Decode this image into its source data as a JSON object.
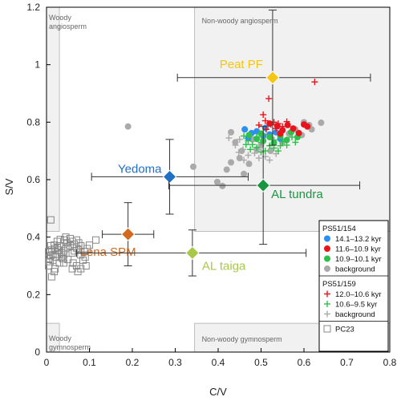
{
  "chart_data": {
    "type": "scatter",
    "xlabel": "C/V",
    "ylabel": "S/V",
    "xlim": [
      0,
      0.8
    ],
    "ylim": [
      0,
      1.2
    ],
    "xticks": [
      "0",
      "0.1",
      "0.2",
      "0.3",
      "0.4",
      "0.5",
      "0.6",
      "0.7",
      "0.8"
    ],
    "yticks": [
      "0",
      "0.2",
      "0.4",
      "0.6",
      "0.8",
      "1",
      "1.2"
    ],
    "regions": [
      {
        "name": "woody-angiosperm",
        "label": "Woody angiosperm",
        "x0": 0.0,
        "x1": 0.03,
        "y0": 0.42,
        "y1": 1.2
      },
      {
        "name": "non-woody-angiosperm",
        "label": "Non-woody angiosperm",
        "x0": 0.345,
        "x1": 0.8,
        "y0": 0.42,
        "y1": 1.2
      },
      {
        "name": "woody-gymnosperm",
        "label": "Woody gymnosperm",
        "x0": 0.0,
        "x1": 0.03,
        "y0": 0.0,
        "y1": 0.1
      },
      {
        "name": "non-woody-gymnosperm",
        "label": "Non-woody gymnosperm",
        "x0": 0.345,
        "x1": 0.8,
        "y0": 0.0,
        "y1": 0.1
      }
    ],
    "endmembers": [
      {
        "name": "Peat PF",
        "x": 0.527,
        "y": 0.955,
        "xerr": [
          0.305,
          0.755
        ],
        "yerr": [
          0.72,
          1.19
        ],
        "color": "#f5c518"
      },
      {
        "name": "Yedoma",
        "x": 0.287,
        "y": 0.61,
        "xerr": [
          0.105,
          0.47
        ],
        "yerr": [
          0.48,
          0.74
        ],
        "color": "#1f6fc5"
      },
      {
        "name": "AL tundra",
        "x": 0.505,
        "y": 0.58,
        "xerr": [
          0.285,
          0.73
        ],
        "yerr": [
          0.375,
          0.785
        ],
        "color": "#1a9641"
      },
      {
        "name": "Lena SPM",
        "x": 0.19,
        "y": 0.41,
        "xerr": [
          0.13,
          0.25
        ],
        "yerr": [
          0.3,
          0.52
        ],
        "color": "#d2691e"
      },
      {
        "name": "AL taiga",
        "x": 0.34,
        "y": 0.345,
        "xerr": [
          0.07,
          0.605
        ],
        "yerr": [
          0.265,
          0.425
        ],
        "color": "#a8c84a"
      }
    ],
    "series": [
      {
        "name": "14.1–13.2 kyr",
        "group": "PS51/154",
        "marker": "circle",
        "color": "#2b8ff0",
        "points": [
          [
            0.462,
            0.775
          ],
          [
            0.478,
            0.762
          ],
          [
            0.49,
            0.768
          ],
          [
            0.505,
            0.752
          ],
          [
            0.52,
            0.757
          ],
          [
            0.535,
            0.765
          ],
          [
            0.47,
            0.745
          ],
          [
            0.51,
            0.78
          ],
          [
            0.545,
            0.742
          ]
        ]
      },
      {
        "name": "11.6–10.9 kyr",
        "group": "PS51/154",
        "marker": "circle",
        "color": "#e8141b",
        "points": [
          [
            0.52,
            0.795
          ],
          [
            0.538,
            0.787
          ],
          [
            0.55,
            0.772
          ],
          [
            0.562,
            0.79
          ],
          [
            0.575,
            0.778
          ],
          [
            0.588,
            0.762
          ],
          [
            0.6,
            0.792
          ],
          [
            0.608,
            0.785
          ],
          [
            0.545,
            0.76
          ]
        ]
      },
      {
        "name": "10.9–10.1 kyr",
        "group": "PS51/154",
        "marker": "circle",
        "color": "#2fbf4a",
        "points": [
          [
            0.472,
            0.755
          ],
          [
            0.49,
            0.742
          ],
          [
            0.505,
            0.735
          ],
          [
            0.52,
            0.748
          ],
          [
            0.53,
            0.728
          ],
          [
            0.545,
            0.752
          ],
          [
            0.56,
            0.738
          ],
          [
            0.57,
            0.765
          ],
          [
            0.585,
            0.748
          ],
          [
            0.5,
            0.76
          ]
        ]
      },
      {
        "name": "background",
        "group": "PS51/154",
        "marker": "circle",
        "color": "#aaaaaa",
        "points": [
          [
            0.19,
            0.785
          ],
          [
            0.342,
            0.645
          ],
          [
            0.398,
            0.592
          ],
          [
            0.41,
            0.578
          ],
          [
            0.42,
            0.635
          ],
          [
            0.45,
            0.675
          ],
          [
            0.472,
            0.655
          ],
          [
            0.48,
            0.74
          ],
          [
            0.49,
            0.705
          ],
          [
            0.5,
            0.72
          ],
          [
            0.44,
            0.73
          ],
          [
            0.43,
            0.765
          ],
          [
            0.455,
            0.7
          ],
          [
            0.55,
            0.73
          ],
          [
            0.565,
            0.76
          ],
          [
            0.6,
            0.8
          ],
          [
            0.612,
            0.79
          ],
          [
            0.58,
            0.775
          ],
          [
            0.595,
            0.755
          ],
          [
            0.618,
            0.775
          ],
          [
            0.522,
            0.7
          ],
          [
            0.46,
            0.62
          ],
          [
            0.64,
            0.798
          ],
          [
            0.43,
            0.66
          ]
        ]
      },
      {
        "name": "12.0–10.6 kyr",
        "group": "PS51/159",
        "marker": "plus",
        "color": "#e8141b",
        "points": [
          [
            0.625,
            0.94
          ],
          [
            0.518,
            0.882
          ],
          [
            0.505,
            0.826
          ],
          [
            0.51,
            0.805
          ],
          [
            0.523,
            0.792
          ],
          [
            0.53,
            0.8
          ],
          [
            0.54,
            0.795
          ],
          [
            0.55,
            0.785
          ],
          [
            0.495,
            0.79
          ],
          [
            0.512,
            0.775
          ],
          [
            0.535,
            0.778
          ],
          [
            0.56,
            0.802
          ]
        ]
      },
      {
        "name": "10.6–9.5 kyr",
        "group": "PS51/159",
        "marker": "plus",
        "color": "#2fbf4a",
        "points": [
          [
            0.46,
            0.752
          ],
          [
            0.47,
            0.735
          ],
          [
            0.48,
            0.722
          ],
          [
            0.49,
            0.712
          ],
          [
            0.5,
            0.73
          ],
          [
            0.51,
            0.7
          ],
          [
            0.52,
            0.718
          ],
          [
            0.53,
            0.71
          ],
          [
            0.54,
            0.7
          ],
          [
            0.55,
            0.732
          ],
          [
            0.56,
            0.72
          ],
          [
            0.572,
            0.748
          ],
          [
            0.58,
            0.73
          ],
          [
            0.49,
            0.748
          ],
          [
            0.505,
            0.758
          ],
          [
            0.475,
            0.705
          ],
          [
            0.465,
            0.722
          ],
          [
            0.53,
            0.738
          ],
          [
            0.545,
            0.718
          ],
          [
            0.5,
            0.696
          ]
        ]
      },
      {
        "name": "background",
        "group": "PS51/159",
        "marker": "plus",
        "color": "#aaaaaa",
        "points": [
          [
            0.44,
            0.72
          ],
          [
            0.448,
            0.695
          ],
          [
            0.458,
            0.705
          ],
          [
            0.47,
            0.685
          ],
          [
            0.485,
            0.692
          ],
          [
            0.495,
            0.675
          ],
          [
            0.51,
            0.68
          ],
          [
            0.52,
            0.668
          ],
          [
            0.46,
            0.668
          ],
          [
            0.535,
            0.69
          ],
          [
            0.425,
            0.745
          ],
          [
            0.45,
            0.74
          ]
        ]
      },
      {
        "name": "PC23",
        "group": "",
        "marker": "square",
        "color": "#888888",
        "points": [
          [
            0.01,
            0.46
          ],
          [
            0.012,
            0.262
          ],
          [
            0.018,
            0.28
          ],
          [
            0.02,
            0.29
          ],
          [
            0.005,
            0.3
          ],
          [
            0.008,
            0.315
          ],
          [
            0.015,
            0.32
          ],
          [
            0.022,
            0.33
          ],
          [
            0.03,
            0.34
          ],
          [
            0.035,
            0.345
          ],
          [
            0.01,
            0.335
          ],
          [
            0.005,
            0.35
          ],
          [
            0.012,
            0.355
          ],
          [
            0.02,
            0.36
          ],
          [
            0.025,
            0.365
          ],
          [
            0.03,
            0.37
          ],
          [
            0.018,
            0.372
          ],
          [
            0.04,
            0.352
          ],
          [
            0.045,
            0.36
          ],
          [
            0.05,
            0.365
          ],
          [
            0.055,
            0.37
          ],
          [
            0.048,
            0.38
          ],
          [
            0.06,
            0.385
          ],
          [
            0.065,
            0.375
          ],
          [
            0.07,
            0.39
          ],
          [
            0.075,
            0.38
          ],
          [
            0.08,
            0.37
          ],
          [
            0.042,
            0.39
          ],
          [
            0.032,
            0.392
          ],
          [
            0.045,
            0.4
          ],
          [
            0.055,
            0.395
          ],
          [
            0.025,
            0.385
          ],
          [
            0.115,
            0.39
          ],
          [
            0.1,
            0.372
          ],
          [
            0.095,
            0.36
          ],
          [
            0.088,
            0.35
          ],
          [
            0.09,
            0.33
          ],
          [
            0.085,
            0.32
          ],
          [
            0.092,
            0.3
          ],
          [
            0.08,
            0.29
          ],
          [
            0.073,
            0.28
          ],
          [
            0.07,
            0.3
          ],
          [
            0.062,
            0.31
          ],
          [
            0.06,
            0.29
          ],
          [
            0.05,
            0.322
          ],
          [
            0.04,
            0.31
          ],
          [
            0.038,
            0.325
          ],
          [
            0.015,
            0.34
          ],
          [
            0.028,
            0.355
          ],
          [
            0.035,
            0.33
          ],
          [
            0.04,
            0.338
          ],
          [
            0.005,
            0.325
          ],
          [
            0.06,
            0.345
          ],
          [
            0.075,
            0.355
          ],
          [
            0.08,
            0.338
          ],
          [
            0.07,
            0.362
          ],
          [
            0.065,
            0.352
          ],
          [
            0.01,
            0.37
          ],
          [
            0.03,
            0.31
          ]
        ]
      }
    ],
    "legend": {
      "placement": "bottom-right",
      "groups": [
        {
          "title": "PS51/154",
          "entries": [
            {
              "label": "14.1–13.2 kyr",
              "marker": "circle",
              "color": "#2b8ff0"
            },
            {
              "label": "11.6–10.9 kyr",
              "marker": "circle",
              "color": "#e8141b"
            },
            {
              "label": "10.9–10.1 kyr",
              "marker": "circle",
              "color": "#2fbf4a"
            },
            {
              "label": "background",
              "marker": "circle",
              "color": "#aaaaaa"
            }
          ]
        },
        {
          "title": "PS51/159",
          "entries": [
            {
              "label": "12.0–10.6 kyr",
              "marker": "plus",
              "color": "#e8141b"
            },
            {
              "label": "10.6–9.5 kyr",
              "marker": "plus",
              "color": "#2fbf4a"
            },
            {
              "label": "background",
              "marker": "plus",
              "color": "#aaaaaa"
            }
          ]
        },
        {
          "title": "",
          "entries": [
            {
              "label": "PC23",
              "marker": "square",
              "color": "#888888"
            }
          ]
        }
      ]
    }
  }
}
